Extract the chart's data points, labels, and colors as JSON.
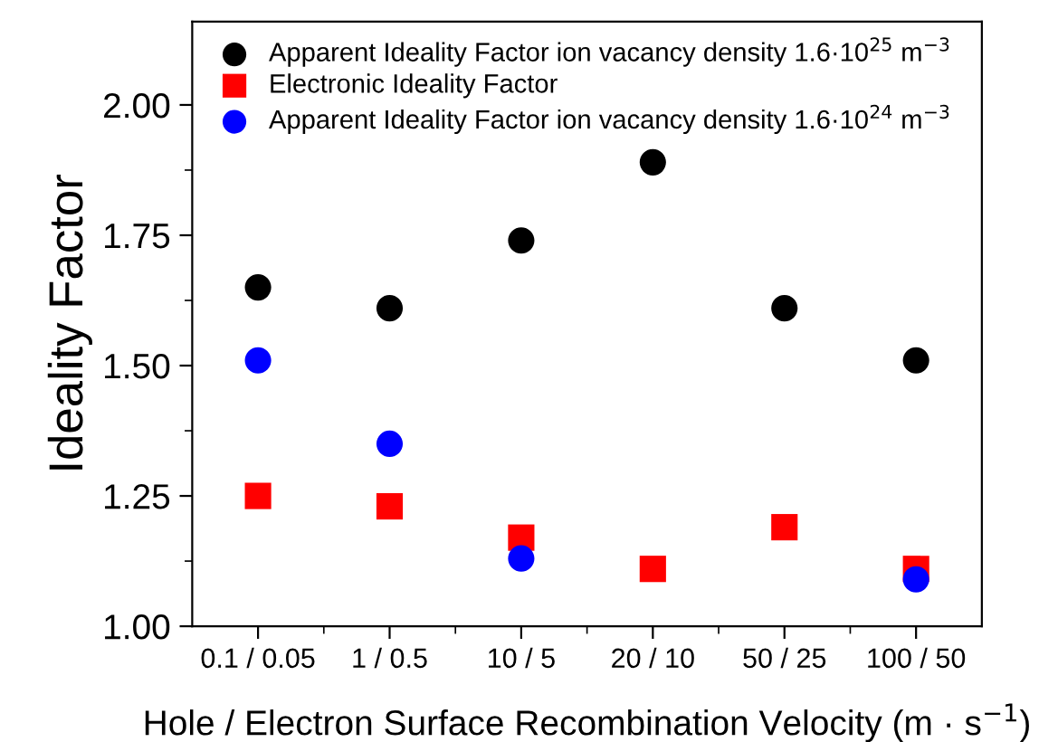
{
  "chart_data": {
    "type": "scatter",
    "xlabel": "Hole / Electron Surface Recombination Velocity (m · s$^{−1}$)",
    "ylabel": "Ideality Factor",
    "categories": [
      "0.1 / 0.05",
      "1 / 0.5",
      "10 / 5",
      "20 / 10",
      "50 / 25",
      "100 / 50"
    ],
    "series": [
      {
        "name": "Apparent Ideality Factor ion vacancy density 1.6·10$^{25}$ m$^{−3}$",
        "color": "#000000",
        "marker": "circle",
        "values": [
          1.65,
          1.61,
          1.74,
          1.89,
          1.61,
          1.51
        ]
      },
      {
        "name": "Electronic Ideality Factor",
        "color": "#ff0000",
        "marker": "square",
        "values": [
          1.25,
          1.23,
          1.17,
          1.11,
          1.19,
          1.11
        ]
      },
      {
        "name": "Apparent Ideality Factor ion vacancy density 1.6·10$^{24}$ m$^{−3}$",
        "color": "#0000ff",
        "marker": "circle",
        "values": [
          1.51,
          1.35,
          1.13,
          null,
          null,
          1.09
        ]
      }
    ],
    "ylim": [
      1.0,
      2.16
    ],
    "yticks": [
      {
        "value": 1.0,
        "label": "1.00"
      },
      {
        "value": 1.25,
        "label": "1.25"
      },
      {
        "value": 1.5,
        "label": "1.50"
      },
      {
        "value": 1.75,
        "label": "1.75"
      },
      {
        "value": 2.0,
        "label": "2.00"
      }
    ],
    "grid": false,
    "legend": "top left"
  }
}
